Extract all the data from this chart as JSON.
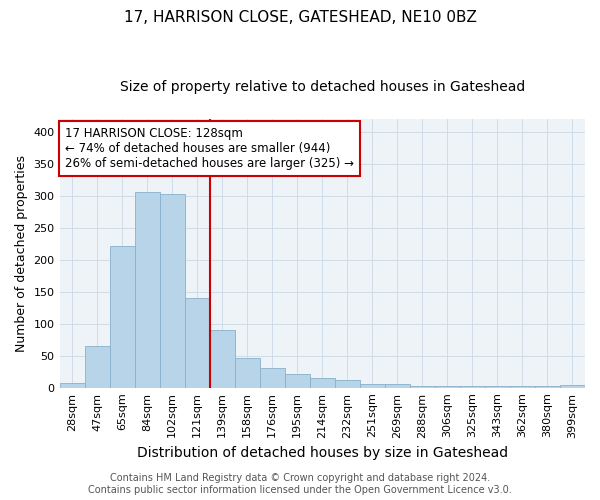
{
  "title": "17, HARRISON CLOSE, GATESHEAD, NE10 0BZ",
  "subtitle": "Size of property relative to detached houses in Gateshead",
  "xlabel": "Distribution of detached houses by size in Gateshead",
  "ylabel": "Number of detached properties",
  "categories": [
    "28sqm",
    "47sqm",
    "65sqm",
    "84sqm",
    "102sqm",
    "121sqm",
    "139sqm",
    "158sqm",
    "176sqm",
    "195sqm",
    "214sqm",
    "232sqm",
    "251sqm",
    "269sqm",
    "288sqm",
    "306sqm",
    "325sqm",
    "343sqm",
    "362sqm",
    "380sqm",
    "399sqm"
  ],
  "values": [
    8,
    65,
    222,
    306,
    303,
    140,
    90,
    46,
    30,
    22,
    15,
    12,
    5,
    5,
    3,
    3,
    3,
    3,
    3,
    3,
    4
  ],
  "bar_color": "#b8d4e8",
  "bar_edge_color": "#8ab0cc",
  "vline_x_category": 5,
  "vline_color": "#cc0000",
  "annotation_line1": "17 HARRISON CLOSE: 128sqm",
  "annotation_line2": "← 74% of detached houses are smaller (944)",
  "annotation_line3": "26% of semi-detached houses are larger (325) →",
  "annotation_box_color": "white",
  "annotation_box_edge": "#cc0000",
  "ylim": [
    0,
    420
  ],
  "yticks": [
    0,
    50,
    100,
    150,
    200,
    250,
    300,
    350,
    400
  ],
  "grid_color": "#d0dce8",
  "bg_color": "#eef3f8",
  "footer1": "Contains HM Land Registry data © Crown copyright and database right 2024.",
  "footer2": "Contains public sector information licensed under the Open Government Licence v3.0.",
  "title_fontsize": 11,
  "subtitle_fontsize": 10,
  "xlabel_fontsize": 10,
  "ylabel_fontsize": 9,
  "tick_fontsize": 8,
  "annotation_fontsize": 8.5,
  "footer_fontsize": 7
}
